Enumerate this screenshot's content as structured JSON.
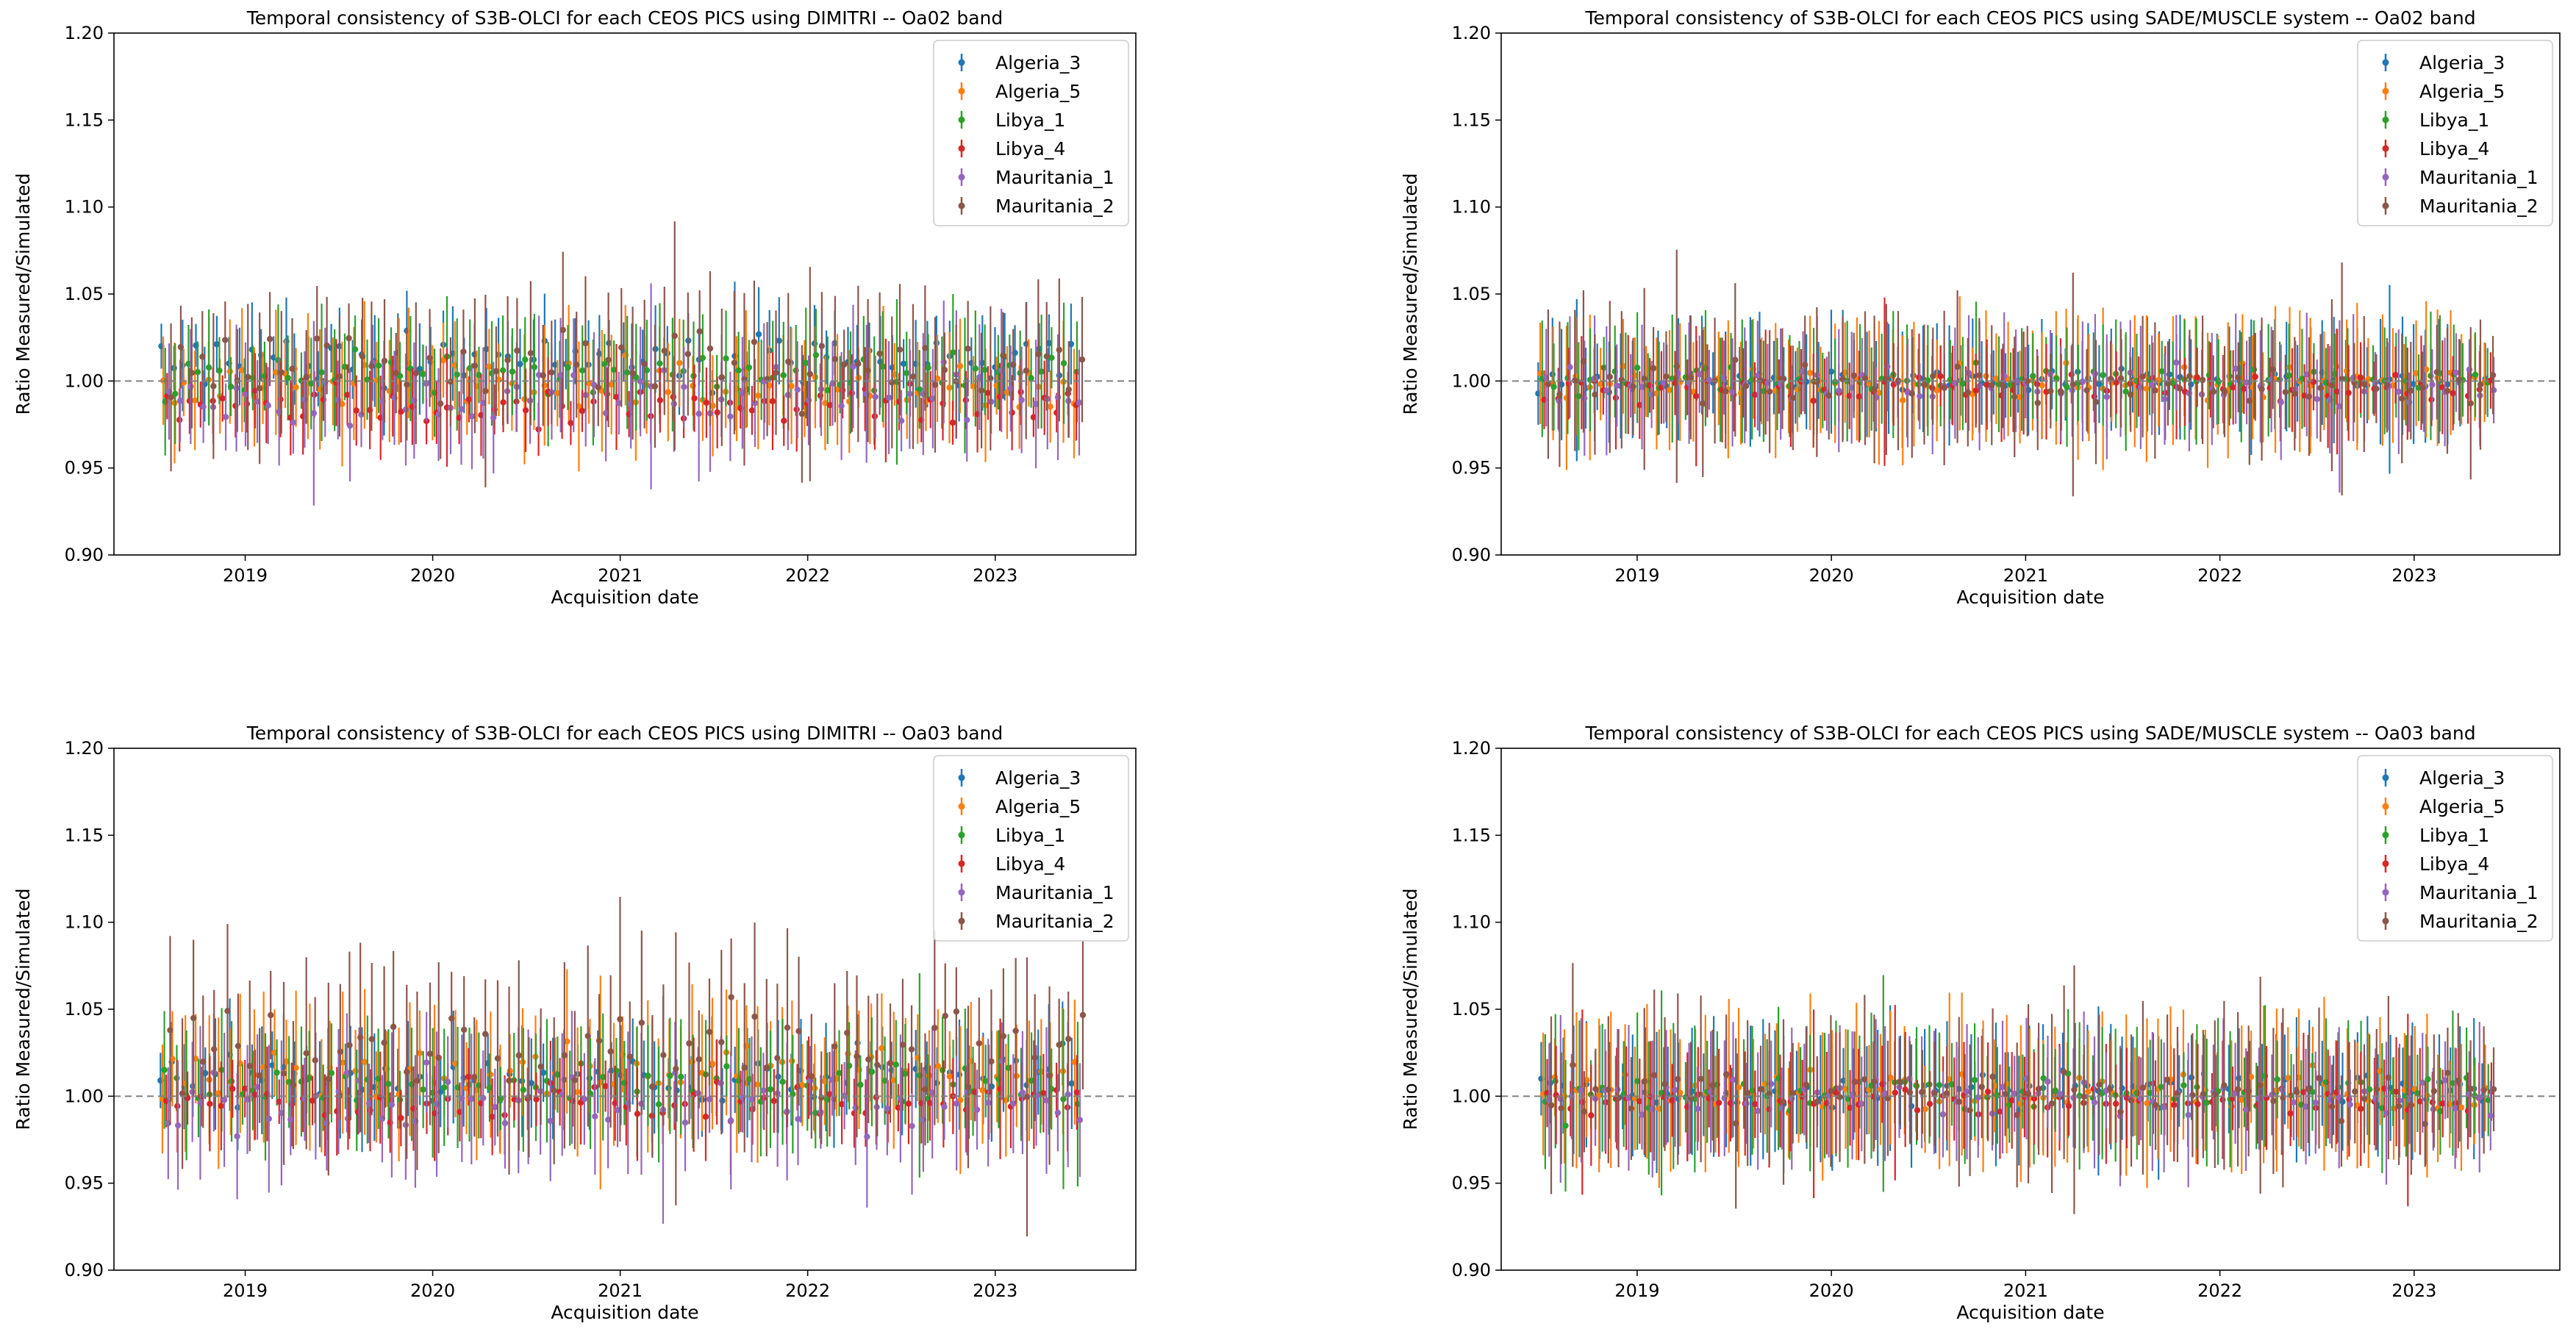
{
  "figure": {
    "x_ticks": [
      "2019",
      "2020",
      "2021",
      "2022",
      "2023"
    ],
    "y_ticks": [
      "0.90",
      "0.95",
      "1.00",
      "1.05",
      "1.10",
      "1.15",
      "1.20"
    ],
    "series_colors": {
      "Algeria_3": "#1f77b4",
      "Algeria_5": "#ff7f0e",
      "Libya_1": "#2ca02c",
      "Libya_4": "#d62728",
      "Mauritania_1": "#9467bd",
      "Mauritania_2": "#8c564b"
    }
  },
  "chart_data": [
    {
      "type": "scatter",
      "title": "Temporal consistency of S3B-OLCI for each CEOS PICS using DIMITRI -- Oa02 band",
      "xlabel": "Acquisition date",
      "ylabel": "Ratio Measured/Simulated",
      "xlim": [
        2018.3,
        2023.75
      ],
      "ylim": [
        0.9,
        1.2
      ],
      "reference_line": 1.0,
      "legend": [
        "Algeria_3",
        "Algeria_5",
        "Libya_1",
        "Libya_4",
        "Mauritania_1",
        "Mauritania_2"
      ],
      "legend_position": "top-right",
      "series": [
        {
          "name": "Algeria_3",
          "mean": 1.012,
          "spread": 0.014,
          "err": 0.022,
          "start": 2018.55,
          "end": 2023.45
        },
        {
          "name": "Algeria_5",
          "mean": 0.998,
          "spread": 0.013,
          "err": 0.03,
          "start": 2018.56,
          "end": 2023.45
        },
        {
          "name": "Libya_1",
          "mean": 1.004,
          "spread": 0.011,
          "err": 0.028,
          "start": 2018.57,
          "end": 2023.46
        },
        {
          "name": "Libya_4",
          "mean": 0.986,
          "spread": 0.01,
          "err": 0.02,
          "start": 2018.58,
          "end": 2023.46
        },
        {
          "name": "Mauritania_1",
          "mean": 0.992,
          "spread": 0.014,
          "err": 0.03,
          "start": 2018.59,
          "end": 2023.47
        },
        {
          "name": "Mauritania_2",
          "mean": 1.01,
          "spread": 0.016,
          "err": 0.036,
          "start": 2018.6,
          "end": 2023.48
        }
      ]
    },
    {
      "type": "scatter",
      "title": "Temporal consistency of S3B-OLCI for each CEOS PICS using SADE/MUSCLE system -- Oa02 band",
      "xlabel": "Acquisition date",
      "ylabel": "Ratio Measured/Simulated",
      "xlim": [
        2018.3,
        2023.75
      ],
      "ylim": [
        0.9,
        1.2
      ],
      "reference_line": 1.0,
      "legend": [
        "Algeria_3",
        "Algeria_5",
        "Libya_1",
        "Libya_4",
        "Mauritania_1",
        "Mauritania_2"
      ],
      "legend_position": "top-right",
      "series": [
        {
          "name": "Algeria_3",
          "mean": 1.001,
          "spread": 0.006,
          "err": 0.03,
          "start": 2018.5,
          "end": 2023.4
        },
        {
          "name": "Algeria_5",
          "mean": 0.999,
          "spread": 0.008,
          "err": 0.034,
          "start": 2018.51,
          "end": 2023.4
        },
        {
          "name": "Libya_1",
          "mean": 1.001,
          "spread": 0.007,
          "err": 0.03,
          "start": 2018.52,
          "end": 2023.41
        },
        {
          "name": "Libya_4",
          "mean": 0.996,
          "spread": 0.006,
          "err": 0.025,
          "start": 2018.53,
          "end": 2023.41
        },
        {
          "name": "Mauritania_1",
          "mean": 0.997,
          "spread": 0.008,
          "err": 0.03,
          "start": 2018.54,
          "end": 2023.42
        },
        {
          "name": "Mauritania_2",
          "mean": 0.998,
          "spread": 0.009,
          "err": 0.036,
          "start": 2018.55,
          "end": 2023.43
        }
      ]
    },
    {
      "type": "scatter",
      "title": "Temporal consistency of S3B-OLCI for each CEOS PICS using DIMITRI -- Oa03 band",
      "xlabel": "Acquisition date",
      "ylabel": "Ratio Measured/Simulated",
      "xlim": [
        2018.3,
        2023.75
      ],
      "ylim": [
        0.9,
        1.2
      ],
      "reference_line": 1.0,
      "legend": [
        "Algeria_3",
        "Algeria_5",
        "Libya_1",
        "Libya_4",
        "Mauritania_1",
        "Mauritania_2"
      ],
      "legend_position": "top-right",
      "series": [
        {
          "name": "Algeria_3",
          "mean": 1.01,
          "spread": 0.012,
          "err": 0.026,
          "start": 2018.55,
          "end": 2023.45
        },
        {
          "name": "Algeria_5",
          "mean": 1.012,
          "spread": 0.014,
          "err": 0.036,
          "start": 2018.56,
          "end": 2023.45
        },
        {
          "name": "Libya_1",
          "mean": 1.008,
          "spread": 0.01,
          "err": 0.03,
          "start": 2018.57,
          "end": 2023.46
        },
        {
          "name": "Libya_4",
          "mean": 0.998,
          "spread": 0.01,
          "err": 0.022,
          "start": 2018.58,
          "end": 2023.46
        },
        {
          "name": "Mauritania_1",
          "mean": 0.998,
          "spread": 0.016,
          "err": 0.034,
          "start": 2018.59,
          "end": 2023.47
        },
        {
          "name": "Mauritania_2",
          "mean": 1.025,
          "spread": 0.02,
          "err": 0.045,
          "start": 2018.6,
          "end": 2023.48
        }
      ]
    },
    {
      "type": "scatter",
      "title": "Temporal consistency of S3B-OLCI for each CEOS PICS using SADE/MUSCLE system -- Oa03 band",
      "xlabel": "Acquisition date",
      "ylabel": "Ratio Measured/Simulated",
      "xlim": [
        2018.3,
        2023.75
      ],
      "ylim": [
        0.9,
        1.2
      ],
      "reference_line": 1.0,
      "legend": [
        "Algeria_3",
        "Algeria_5",
        "Libya_1",
        "Libya_4",
        "Mauritania_1",
        "Mauritania_2"
      ],
      "legend_position": "top-right",
      "series": [
        {
          "name": "Algeria_3",
          "mean": 1.004,
          "spread": 0.008,
          "err": 0.034,
          "start": 2018.5,
          "end": 2023.4
        },
        {
          "name": "Algeria_5",
          "mean": 1.003,
          "spread": 0.01,
          "err": 0.04,
          "start": 2018.51,
          "end": 2023.4
        },
        {
          "name": "Libya_1",
          "mean": 1.002,
          "spread": 0.008,
          "err": 0.034,
          "start": 2018.52,
          "end": 2023.41
        },
        {
          "name": "Libya_4",
          "mean": 0.997,
          "spread": 0.007,
          "err": 0.028,
          "start": 2018.53,
          "end": 2023.41
        },
        {
          "name": "Mauritania_1",
          "mean": 0.999,
          "spread": 0.009,
          "err": 0.034,
          "start": 2018.54,
          "end": 2023.42
        },
        {
          "name": "Mauritania_2",
          "mean": 1.001,
          "spread": 0.011,
          "err": 0.042,
          "start": 2018.55,
          "end": 2023.43
        }
      ]
    }
  ]
}
